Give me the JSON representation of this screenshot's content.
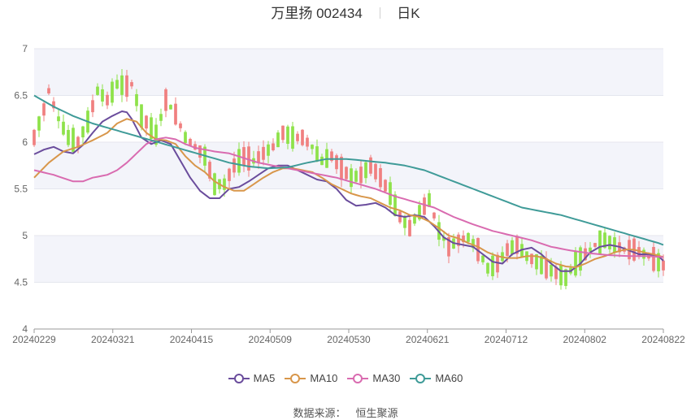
{
  "header": {
    "stock_name": "万里扬",
    "stock_code": "002434",
    "period": "日K"
  },
  "source": {
    "label": "数据来源：",
    "value": "恒生聚源"
  },
  "colors": {
    "up": "#f08080",
    "down": "#8ee24a",
    "ma5": "#6a4c9c",
    "ma10": "#d8964a",
    "ma30": "#d96bb0",
    "ma60": "#3f9b98",
    "band": "#f3f4fa"
  },
  "chart_data": {
    "type": "candlestick",
    "title": "万里扬 002434 日K",
    "x_ticks": [
      "20240229",
      "20240321",
      "20240415",
      "20240509",
      "20240530",
      "20240621",
      "20240712",
      "20240802",
      "20240822"
    ],
    "ylim": [
      4,
      7
    ],
    "y_ticks": [
      4,
      4.5,
      5,
      5.5,
      6,
      6.5,
      7
    ],
    "grid": true,
    "legend": {
      "placement": "bottom-center",
      "entries": [
        "MA5",
        "MA10",
        "MA30",
        "MA60"
      ]
    },
    "series": [
      {
        "name": "MA5",
        "anchors": [
          [
            0,
            5.87
          ],
          [
            2,
            5.92
          ],
          [
            4,
            5.95
          ],
          [
            6,
            5.9
          ],
          [
            8,
            5.88
          ],
          [
            10,
            5.97
          ],
          [
            12,
            6.1
          ],
          [
            14,
            6.22
          ],
          [
            16,
            6.28
          ],
          [
            18,
            6.33
          ],
          [
            19,
            6.32
          ],
          [
            20,
            6.25
          ],
          [
            22,
            6.05
          ],
          [
            24,
            5.98
          ],
          [
            26,
            6.02
          ],
          [
            28,
            5.98
          ],
          [
            30,
            5.8
          ],
          [
            32,
            5.62
          ],
          [
            34,
            5.48
          ],
          [
            36,
            5.4
          ],
          [
            38,
            5.4
          ],
          [
            40,
            5.5
          ],
          [
            42,
            5.52
          ],
          [
            44,
            5.58
          ],
          [
            46,
            5.65
          ],
          [
            48,
            5.72
          ],
          [
            50,
            5.75
          ],
          [
            52,
            5.75
          ],
          [
            54,
            5.7
          ],
          [
            56,
            5.65
          ],
          [
            58,
            5.6
          ],
          [
            60,
            5.58
          ],
          [
            62,
            5.5
          ],
          [
            64,
            5.38
          ],
          [
            66,
            5.32
          ],
          [
            68,
            5.33
          ],
          [
            70,
            5.35
          ],
          [
            72,
            5.3
          ],
          [
            74,
            5.22
          ],
          [
            76,
            5.2
          ],
          [
            78,
            5.22
          ],
          [
            80,
            5.2
          ],
          [
            82,
            5.1
          ],
          [
            84,
            4.98
          ],
          [
            86,
            4.92
          ],
          [
            88,
            4.9
          ],
          [
            90,
            4.88
          ],
          [
            92,
            4.8
          ],
          [
            94,
            4.72
          ],
          [
            96,
            4.7
          ],
          [
            98,
            4.8
          ],
          [
            100,
            4.85
          ],
          [
            102,
            4.87
          ],
          [
            104,
            4.8
          ],
          [
            106,
            4.7
          ],
          [
            108,
            4.62
          ],
          [
            110,
            4.62
          ],
          [
            112,
            4.7
          ],
          [
            114,
            4.82
          ],
          [
            116,
            4.88
          ],
          [
            118,
            4.9
          ],
          [
            120,
            4.88
          ],
          [
            122,
            4.84
          ],
          [
            124,
            4.8
          ],
          [
            126,
            4.8
          ],
          [
            128,
            4.78
          ],
          [
            129,
            4.73
          ]
        ]
      },
      {
        "name": "MA10",
        "anchors": [
          [
            0,
            5.62
          ],
          [
            3,
            5.78
          ],
          [
            6,
            5.9
          ],
          [
            9,
            5.95
          ],
          [
            12,
            6.02
          ],
          [
            15,
            6.1
          ],
          [
            17,
            6.2
          ],
          [
            19,
            6.25
          ],
          [
            21,
            6.22
          ],
          [
            23,
            6.1
          ],
          [
            25,
            6.03
          ],
          [
            27,
            6.02
          ],
          [
            29,
            5.98
          ],
          [
            31,
            5.85
          ],
          [
            33,
            5.75
          ],
          [
            35,
            5.68
          ],
          [
            37,
            5.58
          ],
          [
            39,
            5.52
          ],
          [
            41,
            5.48
          ],
          [
            43,
            5.48
          ],
          [
            45,
            5.55
          ],
          [
            47,
            5.62
          ],
          [
            49,
            5.68
          ],
          [
            51,
            5.72
          ],
          [
            53,
            5.72
          ],
          [
            55,
            5.7
          ],
          [
            57,
            5.68
          ],
          [
            59,
            5.62
          ],
          [
            61,
            5.55
          ],
          [
            63,
            5.5
          ],
          [
            65,
            5.45
          ],
          [
            67,
            5.42
          ],
          [
            69,
            5.4
          ],
          [
            71,
            5.35
          ],
          [
            73,
            5.3
          ],
          [
            75,
            5.27
          ],
          [
            77,
            5.22
          ],
          [
            79,
            5.2
          ],
          [
            81,
            5.15
          ],
          [
            83,
            5.08
          ],
          [
            85,
            5.0
          ],
          [
            87,
            4.97
          ],
          [
            89,
            4.92
          ],
          [
            91,
            4.88
          ],
          [
            93,
            4.82
          ],
          [
            95,
            4.78
          ],
          [
            97,
            4.76
          ],
          [
            99,
            4.76
          ],
          [
            101,
            4.78
          ],
          [
            103,
            4.78
          ],
          [
            105,
            4.75
          ],
          [
            107,
            4.7
          ],
          [
            109,
            4.67
          ],
          [
            111,
            4.66
          ],
          [
            113,
            4.7
          ],
          [
            115,
            4.75
          ],
          [
            117,
            4.78
          ],
          [
            119,
            4.82
          ],
          [
            121,
            4.85
          ],
          [
            123,
            4.85
          ],
          [
            125,
            4.82
          ],
          [
            127,
            4.8
          ],
          [
            129,
            4.77
          ]
        ]
      },
      {
        "name": "MA30",
        "anchors": [
          [
            0,
            5.7
          ],
          [
            4,
            5.65
          ],
          [
            8,
            5.58
          ],
          [
            10,
            5.58
          ],
          [
            12,
            5.62
          ],
          [
            15,
            5.65
          ],
          [
            17,
            5.7
          ],
          [
            19,
            5.78
          ],
          [
            21,
            5.88
          ],
          [
            23,
            5.98
          ],
          [
            25,
            6.03
          ],
          [
            27,
            6.05
          ],
          [
            29,
            6.03
          ],
          [
            31,
            5.98
          ],
          [
            33,
            5.94
          ],
          [
            35,
            5.92
          ],
          [
            37,
            5.9
          ],
          [
            40,
            5.88
          ],
          [
            43,
            5.83
          ],
          [
            46,
            5.78
          ],
          [
            50,
            5.74
          ],
          [
            54,
            5.7
          ],
          [
            58,
            5.66
          ],
          [
            62,
            5.62
          ],
          [
            66,
            5.56
          ],
          [
            70,
            5.5
          ],
          [
            74,
            5.42
          ],
          [
            78,
            5.36
          ],
          [
            82,
            5.3
          ],
          [
            86,
            5.2
          ],
          [
            90,
            5.12
          ],
          [
            94,
            5.05
          ],
          [
            98,
            5.0
          ],
          [
            102,
            4.95
          ],
          [
            106,
            4.88
          ],
          [
            110,
            4.84
          ],
          [
            114,
            4.81
          ],
          [
            118,
            4.79
          ],
          [
            122,
            4.78
          ],
          [
            126,
            4.78
          ],
          [
            129,
            4.77
          ]
        ]
      },
      {
        "name": "MA60",
        "anchors": [
          [
            0,
            6.5
          ],
          [
            4,
            6.38
          ],
          [
            8,
            6.28
          ],
          [
            12,
            6.2
          ],
          [
            16,
            6.14
          ],
          [
            20,
            6.08
          ],
          [
            24,
            6.02
          ],
          [
            28,
            5.96
          ],
          [
            32,
            5.9
          ],
          [
            36,
            5.84
          ],
          [
            40,
            5.78
          ],
          [
            44,
            5.74
          ],
          [
            48,
            5.72
          ],
          [
            52,
            5.73
          ],
          [
            56,
            5.78
          ],
          [
            60,
            5.82
          ],
          [
            64,
            5.82
          ],
          [
            68,
            5.8
          ],
          [
            72,
            5.78
          ],
          [
            76,
            5.75
          ],
          [
            80,
            5.7
          ],
          [
            84,
            5.62
          ],
          [
            88,
            5.54
          ],
          [
            92,
            5.46
          ],
          [
            96,
            5.38
          ],
          [
            100,
            5.3
          ],
          [
            104,
            5.26
          ],
          [
            108,
            5.22
          ],
          [
            112,
            5.16
          ],
          [
            116,
            5.1
          ],
          [
            120,
            5.04
          ],
          [
            124,
            4.98
          ],
          [
            128,
            4.92
          ],
          [
            129,
            4.9
          ]
        ]
      }
    ],
    "candle_anchors": [
      [
        0,
        6.05
      ],
      [
        2,
        6.35
      ],
      [
        3,
        6.55
      ],
      [
        5,
        6.25
      ],
      [
        7,
        6.05
      ],
      [
        9,
        6.0
      ],
      [
        11,
        6.22
      ],
      [
        13,
        6.55
      ],
      [
        15,
        6.45
      ],
      [
        17,
        6.62
      ],
      [
        19,
        6.6
      ],
      [
        20,
        6.62
      ],
      [
        22,
        6.28
      ],
      [
        24,
        6.15
      ],
      [
        25,
        6.08
      ],
      [
        27,
        6.45
      ],
      [
        29,
        6.3
      ],
      [
        31,
        6.05
      ],
      [
        33,
        5.95
      ],
      [
        35,
        5.85
      ],
      [
        37,
        5.55
      ],
      [
        39,
        5.55
      ],
      [
        41,
        5.75
      ],
      [
        43,
        5.85
      ],
      [
        45,
        5.8
      ],
      [
        47,
        5.88
      ],
      [
        49,
        5.95
      ],
      [
        51,
        6.1
      ],
      [
        53,
        6.05
      ],
      [
        55,
        6.05
      ],
      [
        57,
        5.95
      ],
      [
        59,
        5.8
      ],
      [
        61,
        5.85
      ],
      [
        63,
        5.72
      ],
      [
        65,
        5.62
      ],
      [
        67,
        5.65
      ],
      [
        69,
        5.75
      ],
      [
        71,
        5.62
      ],
      [
        73,
        5.45
      ],
      [
        75,
        5.2
      ],
      [
        77,
        5.08
      ],
      [
        79,
        5.25
      ],
      [
        81,
        5.38
      ],
      [
        83,
        5.05
      ],
      [
        85,
        4.88
      ],
      [
        87,
        4.95
      ],
      [
        89,
        4.98
      ],
      [
        91,
        4.85
      ],
      [
        93,
        4.65
      ],
      [
        95,
        4.7
      ],
      [
        97,
        4.85
      ],
      [
        99,
        4.9
      ],
      [
        101,
        4.78
      ],
      [
        103,
        4.72
      ],
      [
        105,
        4.65
      ],
      [
        107,
        4.6
      ],
      [
        109,
        4.55
      ],
      [
        111,
        4.7
      ],
      [
        113,
        4.8
      ],
      [
        115,
        4.9
      ],
      [
        117,
        4.95
      ],
      [
        119,
        4.9
      ],
      [
        121,
        4.85
      ],
      [
        123,
        4.85
      ],
      [
        125,
        4.8
      ],
      [
        127,
        4.75
      ],
      [
        129,
        4.68
      ]
    ],
    "candle_count": 130
  }
}
